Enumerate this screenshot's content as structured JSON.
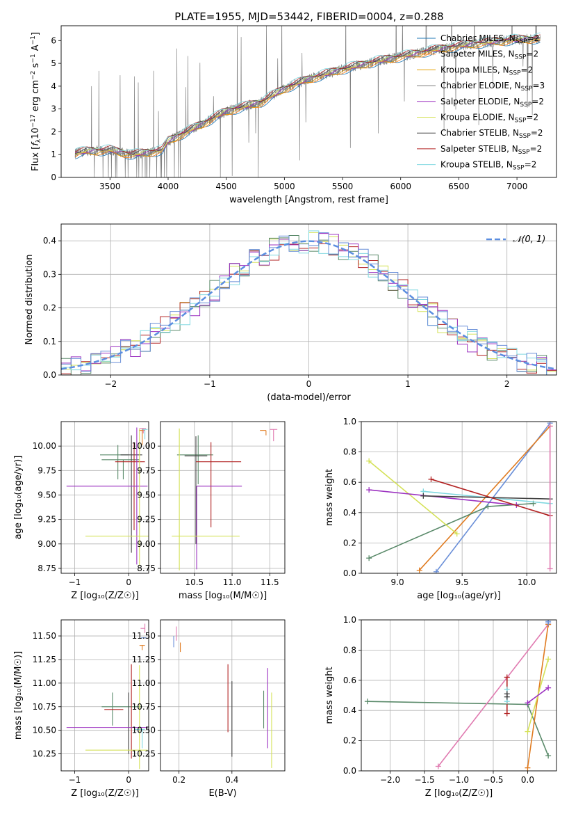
{
  "figure_title": "PLATE=1955, MJD=53442, FIBERID=0004, z=0.288",
  "colors": {
    "chabrier_miles": "#1f77b4",
    "salpeter_miles": "#ff7f0e",
    "kroupa_miles": "#e6a000",
    "chabrier_elodie": "#7f7f7f",
    "salpeter_elodie": "#9b30c0",
    "kroupa_elodie": "#d4e157",
    "chabrier_stelib": "#404040",
    "salpeter_stelib": "#b22222",
    "kroupa_stelib": "#80d8e0",
    "blue_model": "#6a8fd8",
    "orange_model": "#e07b20",
    "green_model": "#5a8a6a",
    "pink_model": "#e07ab0",
    "data_spectrum": "#808080",
    "gaussian": "#5b8ee0"
  },
  "chart_data": [
    {
      "id": "spectrum",
      "type": "line",
      "title": "PLATE=1955, MJD=53442, FIBERID=0004, z=0.288",
      "xlabel": "wavelength [Angstrom, rest frame]",
      "ylabel_parts": [
        "Flux [",
        "f",
        "λ",
        "10",
        "−17",
        " erg cm",
        "−2",
        " s",
        "−1",
        " A",
        "−1",
        "]"
      ],
      "xlim": [
        3080,
        7340
      ],
      "ylim": [
        0,
        6.65
      ],
      "xticks": [
        3500,
        4000,
        4500,
        5000,
        5500,
        6000,
        6500,
        7000
      ],
      "yticks": [
        0,
        1,
        2,
        3,
        4,
        5,
        6
      ],
      "legend_placement": "right",
      "continuum_x": [
        3200,
        3300,
        3500,
        3700,
        3950,
        4000,
        4200,
        4500,
        4800,
        5000,
        5200,
        5500,
        5800,
        6000,
        6300,
        6600,
        7000,
        7200
      ],
      "continuum_y": [
        1.05,
        1.15,
        1.2,
        1.0,
        1.2,
        1.6,
        2.1,
        2.9,
        3.3,
        3.9,
        4.3,
        4.75,
        5.1,
        5.3,
        5.6,
        5.85,
        6.05,
        6.1
      ],
      "legend": [
        {
          "label": "Chabrier MILES, N",
          "sub": "SSP",
          "suffix": "=2",
          "color": "#1f77b4"
        },
        {
          "label": "Salpeter MILES, N",
          "sub": "SSP",
          "suffix": "=2",
          "color": "#ff7f0e"
        },
        {
          "label": "Kroupa MILES, N",
          "sub": "SSP",
          "suffix": "=2",
          "color": "#e6a000"
        },
        {
          "label": "Chabrier ELODIE, N",
          "sub": "SSP",
          "suffix": "=3",
          "color": "#7f7f7f"
        },
        {
          "label": "Salpeter ELODIE, N",
          "sub": "SSP",
          "suffix": "=2",
          "color": "#9b30c0"
        },
        {
          "label": "Kroupa ELODIE, N",
          "sub": "SSP",
          "suffix": "=2",
          "color": "#d4e157"
        },
        {
          "label": "Chabrier STELIB, N",
          "sub": "SSP",
          "suffix": "=2",
          "color": "#404040"
        },
        {
          "label": "Salpeter STELIB, N",
          "sub": "SSP",
          "suffix": "=2",
          "color": "#b22222"
        },
        {
          "label": "Kroupa STELIB, N",
          "sub": "SSP",
          "suffix": "=2",
          "color": "#80d8e0"
        }
      ]
    },
    {
      "id": "residuals",
      "type": "histogram",
      "xlabel": "(data-model)/error",
      "ylabel": "Normed distribution",
      "xlim": [
        -2.5,
        2.5
      ],
      "ylim": [
        0,
        0.45
      ],
      "xticks": [
        -2,
        -1,
        0,
        1,
        2
      ],
      "xtick_labels": [
        "−2",
        "−1",
        "0",
        "1",
        "2"
      ],
      "yticks": [
        0,
        0.1,
        0.2,
        0.3,
        0.4
      ],
      "ytick_labels": [
        "0.0",
        "0.1",
        "0.2",
        "0.3",
        "0.4"
      ],
      "legend_label": "𝒩(0, 1)",
      "legend_placement": "top-right",
      "bin_width": 0.1
    },
    {
      "id": "age_vs_Z",
      "type": "errorbar",
      "xlabel": "Z [log₁₀(Z/Z☉)]",
      "ylabel": "age  [log₁₀(age/yr)]",
      "xlim": [
        -1.25,
        0.37
      ],
      "ylim": [
        8.7,
        10.25
      ],
      "xticks": [
        -1,
        0
      ],
      "xtick_labels": [
        "−1",
        "0"
      ],
      "yticks": [
        8.75,
        9.0,
        9.25,
        9.5,
        9.75,
        10.0
      ],
      "ytick_labels": [
        "8.75",
        "9.00",
        "9.25",
        "9.50",
        "9.75",
        "10.00"
      ],
      "points": [
        {
          "x": -0.2,
          "y": 9.91,
          "xerr": [
            0.33,
            0.2
          ],
          "yerr": [
            0.25,
            0.1
          ],
          "color": "#5a8a6a"
        },
        {
          "x": -0.1,
          "y": 9.86,
          "xerr": [
            0.4,
            0.3
          ],
          "yerr": [
            0.2,
            0.0
          ],
          "color": "#5a8a6a"
        },
        {
          "x": 0.05,
          "y": 9.91,
          "xerr": [
            0.2,
            0.2
          ],
          "yerr": [
            1.0,
            0.2
          ],
          "color": "#404040"
        },
        {
          "x": 0.1,
          "y": 9.84,
          "xerr": [
            0.35,
            0.2
          ],
          "yerr": [
            0.7,
            0.2
          ],
          "color": "#b22222"
        },
        {
          "x": 0.15,
          "y": 9.59,
          "xerr": [
            1.3,
            0.2
          ],
          "yerr": [
            0.8,
            0.6
          ],
          "color": "#9b30c0"
        },
        {
          "x": 0.2,
          "y": 9.08,
          "xerr": [
            1.0,
            0.2
          ],
          "yerr": [
            0.3,
            1.1
          ],
          "color": "#d4e157"
        },
        {
          "x": 0.25,
          "y": 10.16,
          "xerr": [
            0.05,
            0.05
          ],
          "yerr": [
            0.15,
            0.02
          ],
          "color": "#e07b20"
        },
        {
          "x": 0.27,
          "y": 10.18,
          "xerr": [
            0.07,
            0.05
          ],
          "yerr": [
            0.05,
            0.0
          ],
          "color": "#e07ab0"
        },
        {
          "x": 0.3,
          "y": 10.17,
          "xerr": [
            0.05,
            0.05
          ],
          "yerr": [
            0.1,
            0.0
          ],
          "color": "#80d8e0"
        }
      ]
    },
    {
      "id": "age_vs_mass",
      "type": "errorbar",
      "xlabel": "mass [log₁₀(M/M☉)]",
      "ylabel": "",
      "xlim": [
        10.05,
        11.7
      ],
      "ylim": [
        8.7,
        10.25
      ],
      "xticks": [
        10.5,
        11.0,
        11.5
      ],
      "xtick_labels": [
        "10.5",
        "11.0",
        "11.5"
      ],
      "yticks": [
        8.75,
        9.0,
        9.25,
        9.5,
        9.75,
        10.0
      ],
      "ytick_labels": [
        "8.75",
        "9.00",
        "9.25",
        "9.50",
        "9.75",
        "10.00"
      ],
      "points": [
        {
          "x": 10.55,
          "y": 9.91,
          "xerr": [
            0.28,
            0.2
          ],
          "yerr": [
            0.3,
            0.2
          ],
          "color": "#5a8a6a"
        },
        {
          "x": 10.52,
          "y": 9.9,
          "xerr": [
            0.15,
            0.15
          ],
          "yerr": [
            0.9,
            0.2
          ],
          "color": "#404040"
        },
        {
          "x": 10.72,
          "y": 9.84,
          "xerr": [
            0.2,
            0.4
          ],
          "yerr": [
            0.67,
            0.2
          ],
          "color": "#b22222"
        },
        {
          "x": 10.53,
          "y": 9.59,
          "xerr": [
            0.0,
            0.6
          ],
          "yerr": [
            0.85,
            0.0
          ],
          "color": "#9b30c0"
        },
        {
          "x": 10.3,
          "y": 9.08,
          "xerr": [
            0.1,
            0.8
          ],
          "yerr": [
            0.35,
            1.1
          ],
          "color": "#d4e157"
        },
        {
          "x": 11.45,
          "y": 10.16,
          "xerr": [
            0.08,
            0.0
          ],
          "yerr": [
            0.05,
            0.0
          ],
          "color": "#e07b20"
        },
        {
          "x": 11.55,
          "y": 10.17,
          "xerr": [
            0.05,
            0.05
          ],
          "yerr": [
            0.12,
            0.0
          ],
          "color": "#e07ab0"
        }
      ]
    },
    {
      "id": "massweight_vs_age",
      "type": "line",
      "xlabel": "age  [log₁₀(age/yr)]",
      "ylabel": "mass weight",
      "xlim": [
        8.72,
        10.23
      ],
      "ylim": [
        0,
        1
      ],
      "xticks": [
        9.0,
        9.5,
        10.0
      ],
      "xtick_labels": [
        "9.0",
        "9.5",
        "10.0"
      ],
      "yticks": [
        0.0,
        0.2,
        0.4,
        0.6,
        0.8,
        1.0
      ],
      "ytick_labels": [
        "0.0",
        "0.2",
        "0.4",
        "0.6",
        "0.8",
        "1.0"
      ],
      "series": [
        {
          "color": "#6a8fd8",
          "x": [
            9.3,
            10.18
          ],
          "y": [
            0.01,
            0.99
          ]
        },
        {
          "color": "#e07b20",
          "x": [
            9.17,
            10.18
          ],
          "y": [
            0.02,
            0.97
          ]
        },
        {
          "color": "#5a8a6a",
          "x": [
            8.78,
            9.7,
            10.05
          ],
          "y": [
            0.1,
            0.44,
            0.46
          ]
        },
        {
          "color": "#d4e157",
          "x": [
            8.78,
            9.46
          ],
          "y": [
            0.74,
            0.26
          ]
        },
        {
          "color": "#9b30c0",
          "x": [
            8.78,
            9.92
          ],
          "y": [
            0.55,
            0.45
          ]
        },
        {
          "color": "#80d8e0",
          "x": [
            9.2,
            10.18
          ],
          "y": [
            0.54,
            0.46
          ]
        },
        {
          "color": "#404040",
          "x": [
            9.2,
            10.18
          ],
          "y": [
            0.51,
            0.49
          ]
        },
        {
          "color": "#b22222",
          "x": [
            9.26,
            10.18
          ],
          "y": [
            0.62,
            0.38
          ]
        },
        {
          "color": "#e07ab0",
          "x": [
            10.18,
            10.18
          ],
          "y": [
            0.03,
            0.97
          ]
        }
      ]
    },
    {
      "id": "mass_vs_Z",
      "type": "errorbar",
      "xlabel": "Z [log₁₀(Z/Z☉)]",
      "ylabel": "mass [log₁₀(M/M☉)]",
      "xlim": [
        -1.25,
        0.37
      ],
      "ylim": [
        10.07,
        11.67
      ],
      "xticks": [
        -1,
        0
      ],
      "xtick_labels": [
        "−1",
        "0"
      ],
      "yticks": [
        10.25,
        10.5,
        10.75,
        11.0,
        11.25,
        11.5
      ],
      "ytick_labels": [
        "10.25",
        "10.50",
        "10.75",
        "11.00",
        "11.25",
        "11.50"
      ],
      "points": [
        {
          "x": -0.3,
          "y": 10.75,
          "xerr": [
            0.2,
            0.55
          ],
          "yerr": [
            0.2,
            0.15
          ],
          "color": "#5a8a6a"
        },
        {
          "x": -0.1,
          "y": 10.72,
          "xerr": [
            0.35,
            0.0
          ],
          "yerr": [
            0.0,
            0.0
          ],
          "color": "#b22222"
        },
        {
          "x": 0.05,
          "y": 10.7,
          "xerr": [
            0.0,
            0.0
          ],
          "yerr": [
            0.5,
            0.5
          ],
          "color": "#b22222"
        },
        {
          "x": 0.0,
          "y": 10.55,
          "xerr": [
            0.0,
            0.0
          ],
          "yerr": [
            0.3,
            0.35
          ],
          "color": "#404040"
        },
        {
          "x": 0.15,
          "y": 10.53,
          "xerr": [
            1.3,
            0.2
          ],
          "yerr": [
            0.0,
            0.0
          ],
          "color": "#9b30c0"
        },
        {
          "x": 0.2,
          "y": 10.29,
          "xerr": [
            1.0,
            0.15
          ],
          "yerr": [
            0.2,
            0.9
          ],
          "color": "#d4e157"
        },
        {
          "x": 0.25,
          "y": 10.51,
          "xerr": [
            0.15,
            0.05
          ],
          "yerr": [
            0.2,
            0.0
          ],
          "color": "#80d8e0"
        },
        {
          "x": 0.25,
          "y": 11.4,
          "xerr": [
            0.05,
            0.05
          ],
          "yerr": [
            0.05,
            0.0
          ],
          "color": "#e07b20"
        },
        {
          "x": 0.3,
          "y": 11.58,
          "xerr": [
            0.08,
            0.0
          ],
          "yerr": [
            0.05,
            0.05
          ],
          "color": "#e07ab0"
        },
        {
          "x": 0.28,
          "y": 11.48,
          "xerr": [
            0.05,
            0.05
          ],
          "yerr": [
            0.0,
            0.0
          ],
          "color": "#6a8fd8"
        }
      ]
    },
    {
      "id": "mass_vs_ebv",
      "type": "errorbar",
      "xlabel": "E(B-V)",
      "ylabel": "",
      "xlim": [
        0.13,
        0.6
      ],
      "ylim": [
        10.07,
        11.67
      ],
      "xticks": [
        0.2,
        0.4
      ],
      "xtick_labels": [
        "0.2",
        "0.4"
      ],
      "yticks": [
        10.25,
        10.5,
        10.75,
        11.0,
        11.25,
        11.5
      ],
      "ytick_labels": [
        "10.25",
        "10.50",
        "10.75",
        "11.00",
        "11.25",
        "11.50"
      ],
      "points": [
        {
          "x": 0.18,
          "y": 11.45,
          "xerr": [
            0.0,
            0.0
          ],
          "yerr": [
            0.07,
            0.05
          ],
          "color": "#6a8fd8"
        },
        {
          "x": 0.19,
          "y": 11.55,
          "xerr": [
            0.0,
            0.0
          ],
          "yerr": [
            0.1,
            0.05
          ],
          "color": "#e07ab0"
        },
        {
          "x": 0.205,
          "y": 11.38,
          "xerr": [
            0.0,
            0.0
          ],
          "yerr": [
            0.05,
            0.05
          ],
          "color": "#e07b20"
        },
        {
          "x": 0.385,
          "y": 10.83,
          "xerr": [
            0.0,
            0.0
          ],
          "yerr": [
            0.35,
            0.37
          ],
          "color": "#b22222"
        },
        {
          "x": 0.4,
          "y": 10.62,
          "xerr": [
            0.0,
            0.0
          ],
          "yerr": [
            0.4,
            0.4
          ],
          "color": "#404040"
        },
        {
          "x": 0.52,
          "y": 10.72,
          "xerr": [
            0.0,
            0.0
          ],
          "yerr": [
            0.2,
            0.2
          ],
          "color": "#5a8a6a"
        },
        {
          "x": 0.535,
          "y": 10.73,
          "xerr": [
            0.0,
            0.0
          ],
          "yerr": [
            0.42,
            0.43
          ],
          "color": "#9b30c0"
        },
        {
          "x": 0.55,
          "y": 10.5,
          "xerr": [
            0.0,
            0.0
          ],
          "yerr": [
            0.4,
            0.4
          ],
          "color": "#d4e157"
        }
      ]
    },
    {
      "id": "massweight_vs_Z",
      "type": "line",
      "xlabel": "Z [log₁₀(Z/Z☉)]",
      "ylabel": "mass weight",
      "xlim": [
        -2.42,
        0.42
      ],
      "ylim": [
        0,
        1
      ],
      "xticks": [
        -2.0,
        -1.5,
        -1.0,
        -0.5,
        0.0
      ],
      "xtick_labels": [
        "−2.0",
        "−1.5",
        "−1.0",
        "−0.5",
        "0.0"
      ],
      "yticks": [
        0.0,
        0.2,
        0.4,
        0.6,
        0.8,
        1.0
      ],
      "ytick_labels": [
        "0.0",
        "0.2",
        "0.4",
        "0.6",
        "0.8",
        "1.0"
      ],
      "series": [
        {
          "color": "#5a8a6a",
          "x": [
            -2.33,
            0.0,
            0.3
          ],
          "y": [
            0.46,
            0.44,
            0.1
          ]
        },
        {
          "color": "#e07ab0",
          "x": [
            -1.3,
            0.3
          ],
          "y": [
            0.03,
            0.97
          ]
        },
        {
          "color": "#e07b20",
          "x": [
            0.0,
            0.3
          ],
          "y": [
            0.02,
            0.97
          ]
        },
        {
          "color": "#d4e157",
          "x": [
            0.0,
            0.3
          ],
          "y": [
            0.26,
            0.74
          ]
        },
        {
          "color": "#9b30c0",
          "x": [
            0.0,
            0.3
          ],
          "y": [
            0.45,
            0.55
          ]
        },
        {
          "color": "#b22222",
          "x": [
            -0.3,
            -0.3
          ],
          "y": [
            0.38,
            0.62
          ]
        },
        {
          "color": "#80d8e0",
          "x": [
            -0.3,
            -0.3
          ],
          "y": [
            0.46,
            0.54
          ]
        },
        {
          "color": "#404040",
          "x": [
            -0.3,
            -0.3
          ],
          "y": [
            0.49,
            0.51
          ]
        },
        {
          "color": "#6a8fd8",
          "x": [
            0.3,
            0.3
          ],
          "y": [
            0.98,
            0.99
          ]
        }
      ]
    }
  ]
}
